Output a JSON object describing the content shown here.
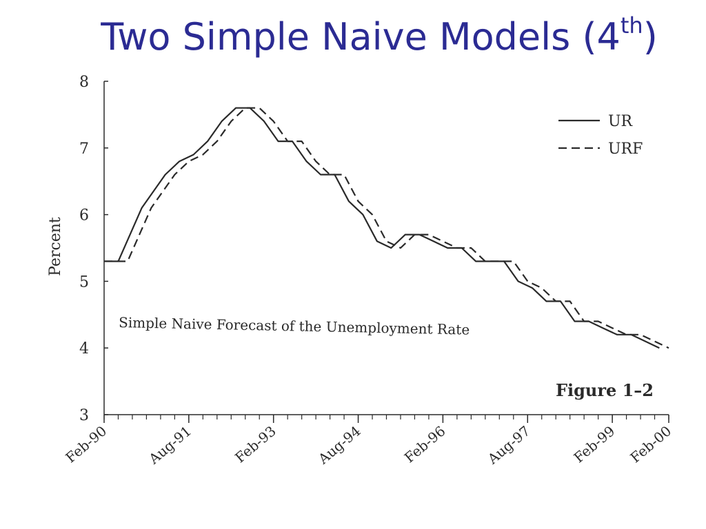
{
  "slide": {
    "title": "Two Simple Naive Models (4",
    "title_sup": "th",
    "title_close": ")"
  },
  "colors": {
    "title": "#2b2b93",
    "ink": "#2a2a2a"
  },
  "chart_data": {
    "type": "line",
    "ylabel": "Percent",
    "xlabel": "",
    "ylim": [
      3,
      8
    ],
    "yticks": [
      3,
      4,
      5,
      6,
      7,
      8
    ],
    "x_range": [
      0,
      120
    ],
    "xtick_positions": [
      0,
      18,
      36,
      54,
      72,
      90,
      108,
      120
    ],
    "xtick_labels": [
      "Feb-90",
      "Aug-91",
      "Feb-93",
      "Aug-94",
      "Feb-96",
      "Aug-97",
      "Feb-99",
      "Feb-00"
    ],
    "annotation": "Simple Naive Forecast of the Unemployment Rate",
    "figure_label": "Figure 1–2",
    "legend_position": "top-right",
    "series": [
      {
        "name": "UR",
        "style": "solid",
        "x": [
          0,
          3,
          8,
          13,
          16,
          19,
          22,
          25,
          28,
          31,
          34,
          37,
          40,
          43,
          46,
          49,
          52,
          55,
          58,
          61,
          64,
          67,
          70,
          73,
          76,
          79,
          82,
          85,
          88,
          91,
          94,
          97,
          100,
          103,
          106,
          109,
          112,
          115,
          118
        ],
        "values": [
          5.3,
          5.3,
          6.1,
          6.6,
          6.8,
          6.9,
          7.1,
          7.4,
          7.6,
          7.6,
          7.4,
          7.1,
          7.1,
          6.8,
          6.6,
          6.6,
          6.2,
          6.0,
          5.6,
          5.5,
          5.7,
          5.7,
          5.6,
          5.5,
          5.5,
          5.3,
          5.3,
          5.3,
          5.0,
          4.9,
          4.7,
          4.7,
          4.4,
          4.4,
          4.3,
          4.2,
          4.2,
          4.1,
          4.0
        ]
      },
      {
        "name": "URF",
        "style": "dashed",
        "x": [
          0,
          5,
          10,
          15,
          18,
          21,
          24,
          27,
          30,
          33,
          36,
          39,
          42,
          45,
          48,
          51,
          54,
          57,
          60,
          63,
          66,
          69,
          72,
          75,
          78,
          81,
          84,
          87,
          90,
          93,
          96,
          99,
          102,
          105,
          108,
          111,
          114,
          117,
          120
        ],
        "values": [
          5.3,
          5.3,
          6.1,
          6.6,
          6.8,
          6.9,
          7.1,
          7.4,
          7.6,
          7.6,
          7.4,
          7.1,
          7.1,
          6.8,
          6.6,
          6.6,
          6.2,
          6.0,
          5.6,
          5.5,
          5.7,
          5.7,
          5.6,
          5.5,
          5.5,
          5.3,
          5.3,
          5.3,
          5.0,
          4.9,
          4.7,
          4.7,
          4.4,
          4.4,
          4.3,
          4.2,
          4.2,
          4.1,
          4.0
        ]
      }
    ]
  }
}
